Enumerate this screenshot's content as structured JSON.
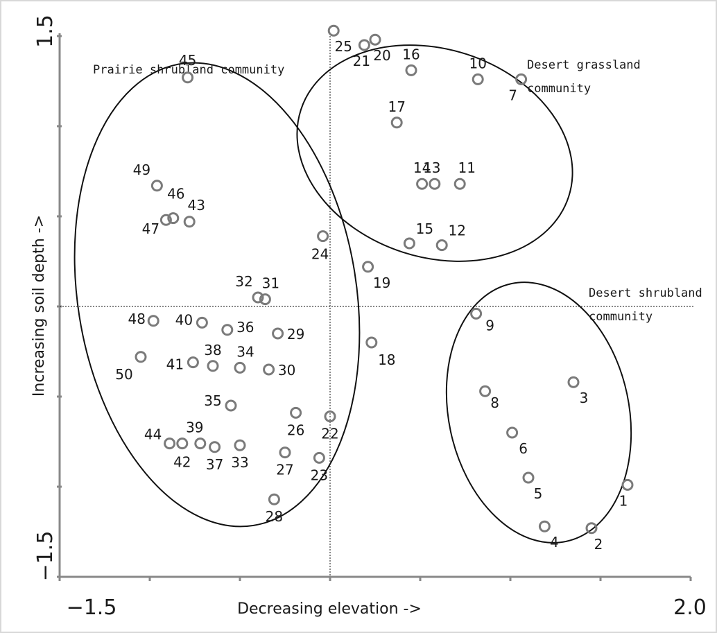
{
  "chart_data": {
    "type": "scatter",
    "xlabel": "Decreasing elevation ->",
    "ylabel": "Increasing soil depth ->",
    "xlim": [
      -1.5,
      2.0
    ],
    "ylim": [
      -1.5,
      1.5
    ],
    "x_tick_labels": [
      "−1.5",
      "2.0"
    ],
    "y_tick_labels": [
      "1.5",
      "−1.5"
    ],
    "reference_lines": {
      "x": 0,
      "y": 0
    },
    "communities": [
      {
        "name_line1": "Prairie shrubland community",
        "name_line2": ""
      },
      {
        "name_line1": "Desert grassland",
        "name_line2": "community"
      },
      {
        "name_line1": "Desert shrubland",
        "name_line2": "community"
      }
    ],
    "points": [
      {
        "id": "1",
        "x": 1.65,
        "y": -0.99
      },
      {
        "id": "2",
        "x": 1.45,
        "y": -1.23
      },
      {
        "id": "3",
        "x": 1.35,
        "y": -0.42
      },
      {
        "id": "4",
        "x": 1.19,
        "y": -1.22
      },
      {
        "id": "5",
        "x": 1.1,
        "y": -0.95
      },
      {
        "id": "6",
        "x": 1.01,
        "y": -0.7
      },
      {
        "id": "7",
        "x": 1.06,
        "y": 1.26
      },
      {
        "id": "8",
        "x": 0.86,
        "y": -0.47
      },
      {
        "id": "9",
        "x": 0.81,
        "y": -0.04
      },
      {
        "id": "10",
        "x": 0.82,
        "y": 1.26
      },
      {
        "id": "11",
        "x": 0.72,
        "y": 0.68
      },
      {
        "id": "12",
        "x": 0.62,
        "y": 0.34
      },
      {
        "id": "13",
        "x": 0.58,
        "y": 0.68
      },
      {
        "id": "14",
        "x": 0.51,
        "y": 0.68
      },
      {
        "id": "15",
        "x": 0.44,
        "y": 0.35
      },
      {
        "id": "16",
        "x": 0.45,
        "y": 1.31
      },
      {
        "id": "17",
        "x": 0.37,
        "y": 1.02
      },
      {
        "id": "18",
        "x": 0.23,
        "y": -0.2
      },
      {
        "id": "19",
        "x": 0.21,
        "y": 0.22
      },
      {
        "id": "20",
        "x": 0.25,
        "y": 1.48
      },
      {
        "id": "21",
        "x": 0.19,
        "y": 1.45
      },
      {
        "id": "22",
        "x": 0.0,
        "y": -0.61
      },
      {
        "id": "23",
        "x": -0.06,
        "y": -0.84
      },
      {
        "id": "24",
        "x": -0.04,
        "y": 0.39
      },
      {
        "id": "25",
        "x": 0.02,
        "y": 1.53
      },
      {
        "id": "26",
        "x": -0.19,
        "y": -0.59
      },
      {
        "id": "27",
        "x": -0.25,
        "y": -0.81
      },
      {
        "id": "28",
        "x": -0.31,
        "y": -1.07
      },
      {
        "id": "29",
        "x": -0.29,
        "y": -0.15
      },
      {
        "id": "30",
        "x": -0.34,
        "y": -0.35
      },
      {
        "id": "31",
        "x": -0.36,
        "y": 0.04
      },
      {
        "id": "32",
        "x": -0.4,
        "y": 0.05
      },
      {
        "id": "33",
        "x": -0.5,
        "y": -0.77
      },
      {
        "id": "34",
        "x": -0.5,
        "y": -0.34
      },
      {
        "id": "35",
        "x": -0.55,
        "y": -0.55
      },
      {
        "id": "36",
        "x": -0.57,
        "y": -0.13
      },
      {
        "id": "37",
        "x": -0.64,
        "y": -0.78
      },
      {
        "id": "38",
        "x": -0.65,
        "y": -0.33
      },
      {
        "id": "39",
        "x": -0.72,
        "y": -0.76
      },
      {
        "id": "40",
        "x": -0.71,
        "y": -0.09
      },
      {
        "id": "41",
        "x": -0.76,
        "y": -0.31
      },
      {
        "id": "42",
        "x": -0.82,
        "y": -0.76
      },
      {
        "id": "43",
        "x": -0.78,
        "y": 0.47
      },
      {
        "id": "44",
        "x": -0.89,
        "y": -0.76
      },
      {
        "id": "45",
        "x": -0.79,
        "y": 1.27
      },
      {
        "id": "46",
        "x": -0.87,
        "y": 0.49
      },
      {
        "id": "47",
        "x": -0.91,
        "y": 0.48
      },
      {
        "id": "48",
        "x": -0.98,
        "y": -0.08
      },
      {
        "id": "49",
        "x": -0.96,
        "y": 0.67
      },
      {
        "id": "50",
        "x": -1.05,
        "y": -0.28
      }
    ]
  }
}
